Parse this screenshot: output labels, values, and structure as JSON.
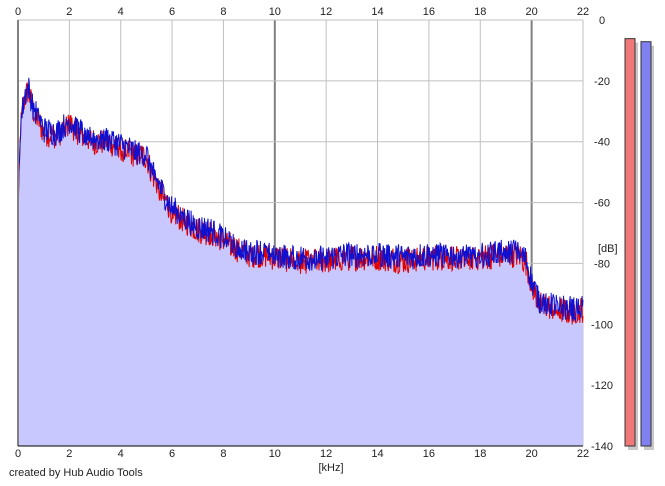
{
  "credit": "created by Hub Audio Tools",
  "colors": {
    "fill": "#c8c8ff",
    "left_channel": "#e00000",
    "right_channel": "#1010d0",
    "grid_minor": "#c0c0c0",
    "grid_major": "#808080",
    "meter_left": "#f07878",
    "meter_right": "#8080f0"
  },
  "chart_data": {
    "type": "line",
    "xlabel": "[kHz]",
    "ylabel": "[dB]",
    "xlim": [
      0,
      22
    ],
    "ylim": [
      -140,
      0
    ],
    "x_ticks": [
      "0",
      "2",
      "4",
      "6",
      "8",
      "10",
      "12",
      "14",
      "16",
      "18",
      "20",
      "22"
    ],
    "y_ticks": [
      "0",
      "-20",
      "-40",
      "-60",
      "-80",
      "-100",
      "-120",
      "-140"
    ],
    "grid": true,
    "series": [
      {
        "channel": "left",
        "color": "#e00000",
        "x": [
          0,
          0.1,
          0.25,
          0.4,
          0.6,
          0.8,
          1,
          1.5,
          2,
          2.5,
          3,
          3.5,
          4,
          4.5,
          5,
          5.2,
          5.6,
          6,
          6.5,
          7,
          7.5,
          8,
          8.5,
          9,
          9.5,
          10,
          11,
          12,
          13,
          14,
          15,
          16,
          17,
          18,
          19,
          19.5,
          19.8,
          20,
          20.3,
          21,
          21.5,
          22
        ],
        "y": [
          -62,
          -35,
          -26,
          -23,
          -30,
          -33,
          -37,
          -38,
          -34,
          -38,
          -40,
          -40,
          -42,
          -44,
          -45,
          -50,
          -57,
          -63,
          -66,
          -69,
          -70,
          -72,
          -75,
          -77,
          -77,
          -78,
          -79,
          -79,
          -78,
          -78,
          -79,
          -78,
          -78,
          -78,
          -77,
          -77,
          -80,
          -87,
          -93,
          -95,
          -96,
          -95
        ]
      },
      {
        "channel": "right",
        "color": "#1010d0",
        "x": [
          0,
          0.1,
          0.25,
          0.4,
          0.6,
          0.8,
          1,
          1.5,
          2,
          2.5,
          3,
          3.5,
          4,
          4.5,
          5,
          5.2,
          5.6,
          6,
          6.5,
          7,
          7.5,
          8,
          8.5,
          9,
          9.5,
          10,
          11,
          12,
          13,
          14,
          15,
          16,
          17,
          18,
          19,
          19.5,
          19.8,
          20,
          20.3,
          21,
          21.5,
          22
        ],
        "y": [
          -60,
          -34,
          -25,
          -22,
          -29,
          -32,
          -36,
          -37,
          -33,
          -37,
          -39,
          -39,
          -41,
          -43,
          -44,
          -49,
          -56,
          -62,
          -65,
          -68,
          -69,
          -71,
          -74,
          -76,
          -76,
          -77,
          -78,
          -78,
          -77,
          -77,
          -78,
          -77,
          -77,
          -77,
          -76,
          -76,
          -79,
          -86,
          -92,
          -94,
          -95,
          -94
        ]
      }
    ],
    "level_meters": [
      {
        "channel": "left",
        "level_db": -3.5
      },
      {
        "channel": "right",
        "level_db": -4.5
      }
    ]
  }
}
